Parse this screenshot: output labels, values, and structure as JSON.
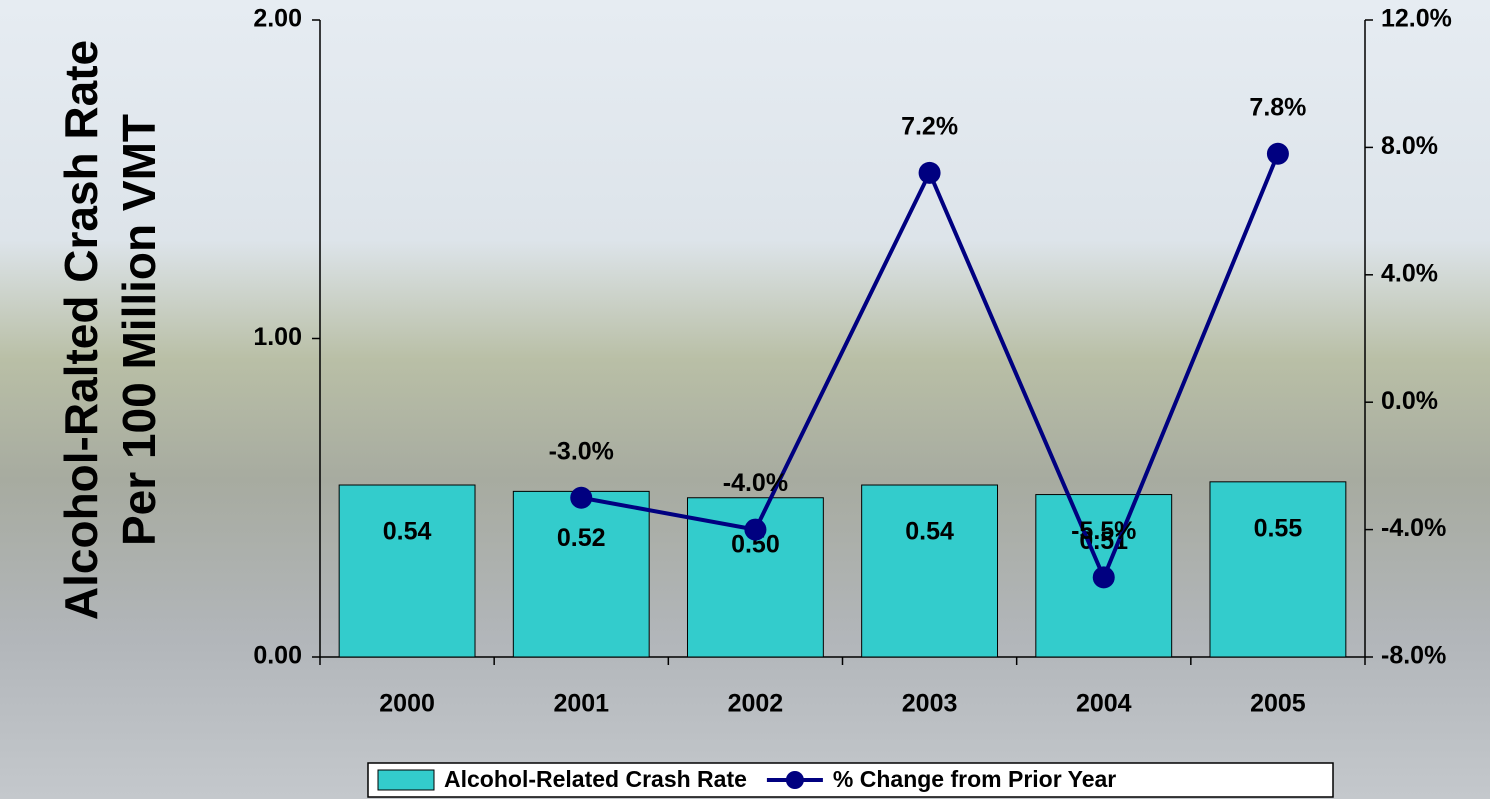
{
  "chart_data": {
    "type": "bar-line",
    "y_label": "Alcohol-Ralted Crash Rate Per 100 Million VMT",
    "categories": [
      "2000",
      "2001",
      "2002",
      "2003",
      "2004",
      "2005"
    ],
    "series": [
      {
        "name": "Alcohol-Related Crash Rate",
        "type": "bar",
        "color": "#33cccc",
        "values": [
          0.54,
          0.52,
          0.5,
          0.54,
          0.51,
          0.55
        ],
        "value_labels": [
          "0.54",
          "0.52",
          "0.50",
          "0.54",
          "0.51",
          "0.55"
        ]
      },
      {
        "name": "% Change from Prior Year",
        "type": "line",
        "axis": "y2",
        "color": "#000080",
        "values": [
          null,
          -3.0,
          -4.0,
          7.2,
          -5.5,
          7.8
        ],
        "value_labels": [
          null,
          "-3.0%",
          "-4.0%",
          "7.2%",
          "-5.5%",
          "7.8%"
        ]
      }
    ],
    "ylim": [
      0,
      2
    ],
    "yticks": [
      {
        "value": 0,
        "label": "0.00"
      },
      {
        "value": 1,
        "label": "1.00"
      },
      {
        "value": 2,
        "label": "2.00"
      }
    ],
    "y2lim": [
      -8,
      12
    ],
    "y2ticks": [
      {
        "value": -8,
        "label": "-8.0%"
      },
      {
        "value": -4,
        "label": "-4.0%"
      },
      {
        "value": 0,
        "label": "0.0%"
      },
      {
        "value": 4,
        "label": "4.0%"
      },
      {
        "value": 8,
        "label": "8.0%"
      },
      {
        "value": 12,
        "label": "12.0%"
      }
    ],
    "legend": "bottom"
  }
}
